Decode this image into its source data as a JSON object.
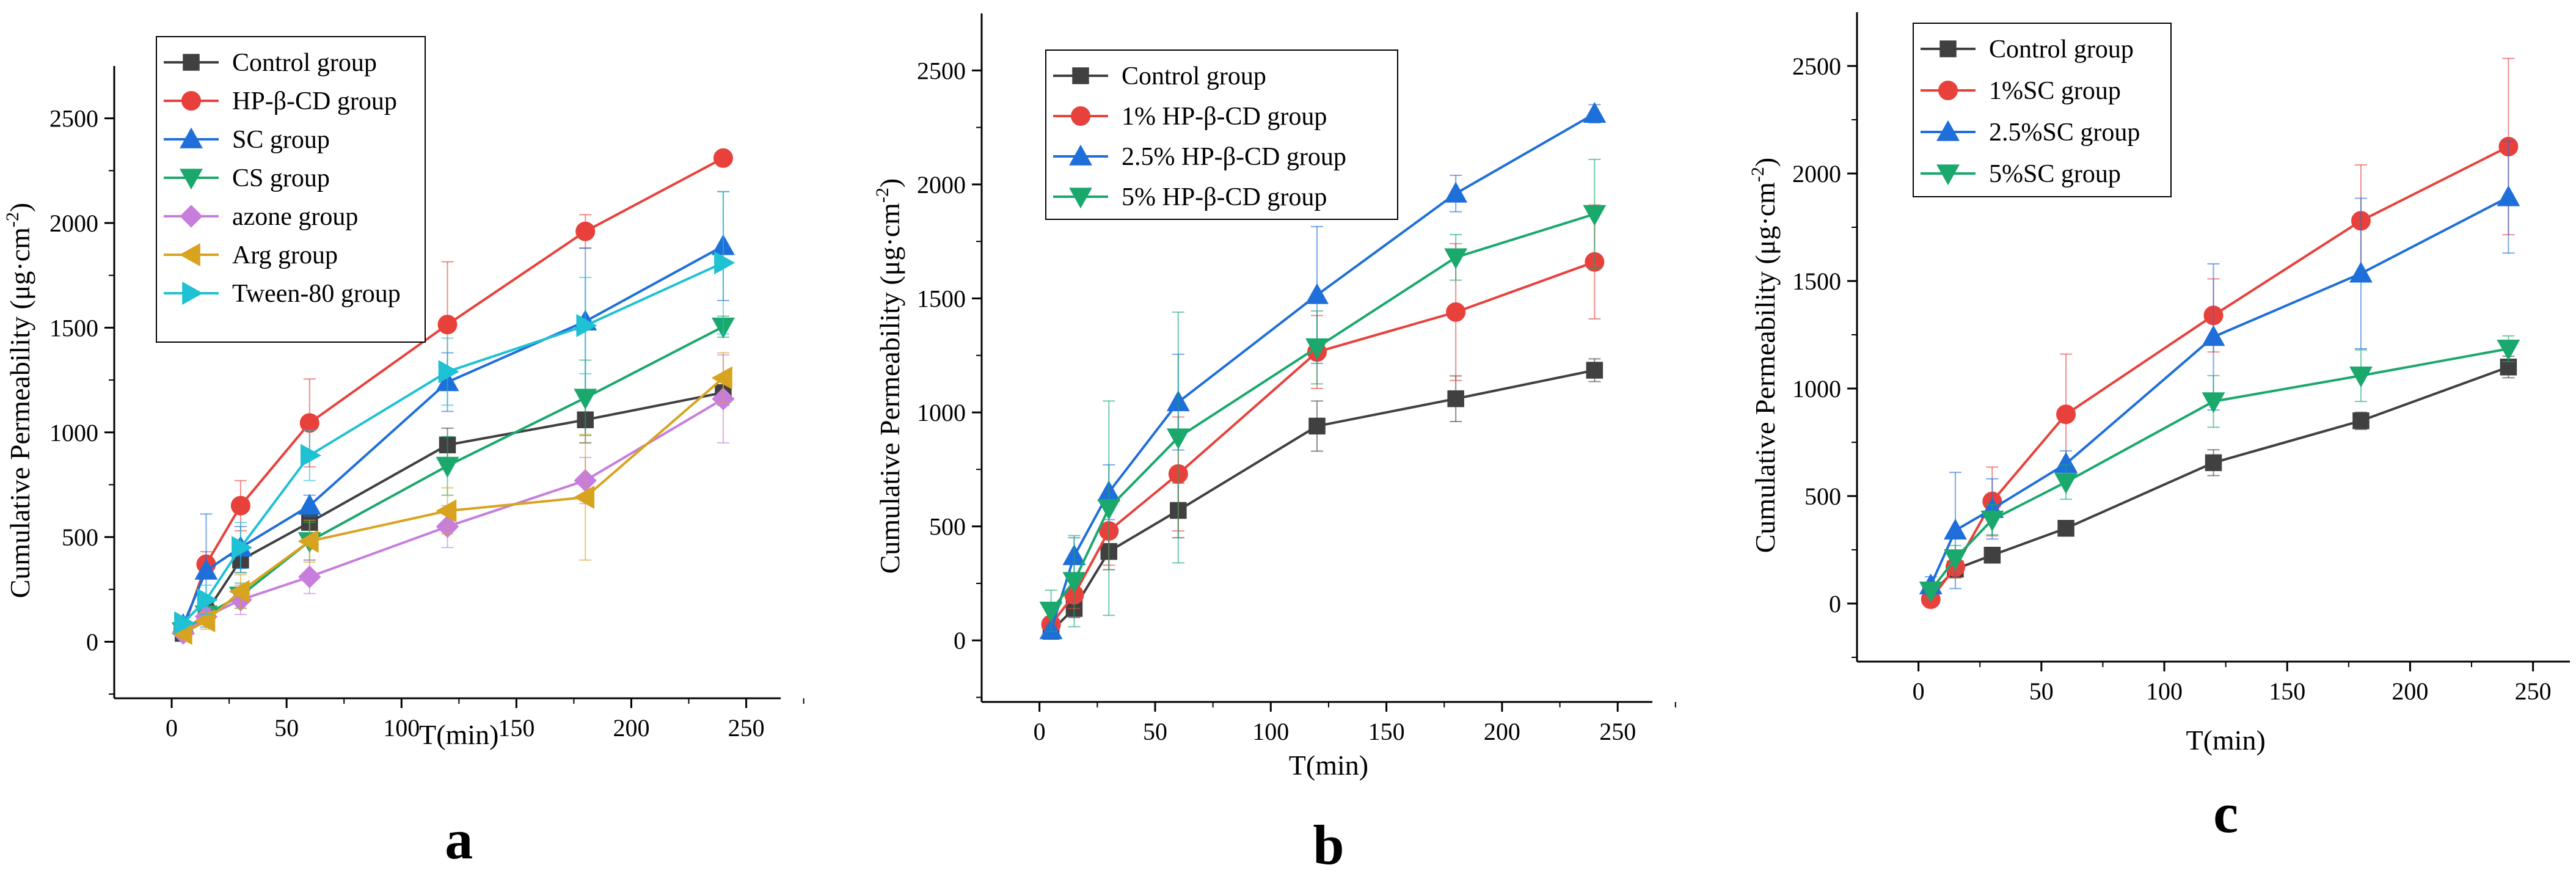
{
  "chart_data": [
    {
      "panel": "a",
      "type": "line",
      "panel_label": "a",
      "xlabel": "T(min)",
      "ylabel": "Cumulative Permeability (μg·cm",
      "ylabel_sup": "-2",
      "ylabel_close": ")",
      "xlim": [
        -25,
        265
      ],
      "ylim": [
        -270,
        2750
      ],
      "xticks": [
        0,
        50,
        100,
        150,
        200,
        250
      ],
      "yticks": [
        0,
        500,
        1000,
        1500,
        2000,
        2500
      ],
      "x": [
        5,
        15,
        30,
        60,
        120,
        180,
        240
      ],
      "series": [
        {
          "name": "Control group",
          "color": "#404040",
          "marker": "square",
          "values": [
            40,
            140,
            390,
            570,
            940,
            1060,
            1190
          ],
          "errors": [
            20,
            40,
            60,
            60,
            80,
            110,
            60
          ]
        },
        {
          "name": "HP-β-CD group",
          "color": "#e8413c",
          "marker": "circle",
          "values": [
            60,
            370,
            650,
            1045,
            1515,
            1960,
            2310
          ],
          "errors": [
            30,
            60,
            120,
            210,
            300,
            80,
            30
          ]
        },
        {
          "name": "SC group",
          "color": "#1e6fd9",
          "marker": "triangle-up",
          "values": [
            80,
            340,
            450,
            650,
            1240,
            1530,
            1890
          ],
          "errors": [
            30,
            270,
            100,
            50,
            140,
            350,
            260
          ]
        },
        {
          "name": "CS group",
          "color": "#1aa86c",
          "marker": "triangle-down",
          "values": [
            50,
            130,
            220,
            480,
            840,
            1165,
            1505
          ],
          "errors": [
            20,
            40,
            60,
            90,
            140,
            180,
            50
          ]
        },
        {
          "name": "azone group",
          "color": "#c77ddc",
          "marker": "diamond",
          "values": [
            40,
            120,
            200,
            310,
            550,
            770,
            1160
          ],
          "errors": [
            20,
            40,
            70,
            80,
            100,
            110,
            210
          ]
        },
        {
          "name": "Arg group",
          "color": "#d8a31e",
          "marker": "triangle-left",
          "values": [
            40,
            100,
            240,
            480,
            625,
            690,
            1260
          ],
          "errors": [
            20,
            40,
            80,
            100,
            110,
            300,
            120
          ]
        },
        {
          "name": "Tween-80 group",
          "color": "#1fc1d4",
          "marker": "triangle-right",
          "values": [
            90,
            200,
            450,
            890,
            1290,
            1510,
            1810
          ],
          "errors": [
            30,
            70,
            120,
            120,
            160,
            230,
            340
          ]
        }
      ]
    },
    {
      "panel": "b",
      "type": "line",
      "panel_label": "b",
      "xlabel": "T(min)",
      "ylabel": "Cumulative Permeability (μg·cm",
      "ylabel_sup": "-2",
      "ylabel_close": ")",
      "xlim": [
        -25,
        265
      ],
      "ylim": [
        -270,
        2750
      ],
      "xticks": [
        0,
        50,
        100,
        150,
        200,
        250
      ],
      "yticks": [
        0,
        500,
        1000,
        1500,
        2000,
        2500
      ],
      "x": [
        5,
        15,
        30,
        60,
        120,
        180,
        240
      ],
      "series": [
        {
          "name": "Control group",
          "color": "#404040",
          "marker": "square",
          "values": [
            40,
            140,
            390,
            570,
            940,
            1060,
            1185
          ],
          "errors": [
            20,
            40,
            80,
            120,
            110,
            100,
            50
          ]
        },
        {
          "name": "1% HP-β-CD group",
          "color": "#e8413c",
          "marker": "circle",
          "values": [
            70,
            200,
            480,
            730,
            1265,
            1440,
            1660
          ],
          "errors": [
            30,
            60,
            150,
            250,
            160,
            300,
            250
          ]
        },
        {
          "name": "2.5% HP-β-CD group",
          "color": "#1e6fd9",
          "marker": "triangle-up",
          "values": [
            45,
            370,
            650,
            1045,
            1515,
            1960,
            2310
          ],
          "errors": [
            20,
            80,
            120,
            210,
            300,
            80,
            40
          ]
        },
        {
          "name": "5% HP-β-CD group",
          "color": "#1aa86c",
          "marker": "triangle-down",
          "values": [
            130,
            260,
            580,
            890,
            1285,
            1680,
            1870
          ],
          "errors": [
            90,
            200,
            470,
            550,
            160,
            100,
            240
          ]
        }
      ]
    },
    {
      "panel": "c",
      "type": "line",
      "panel_label": "c",
      "xlabel": "T(min)",
      "ylabel": "Cumulative Permeability (μg·cm",
      "ylabel_sup": "-2",
      "ylabel_close": ")",
      "xlim": [
        -25,
        265
      ],
      "ylim": [
        -270,
        2750
      ],
      "xticks": [
        0,
        50,
        100,
        150,
        200,
        250
      ],
      "yticks": [
        0,
        500,
        1000,
        1500,
        2000,
        2500
      ],
      "x": [
        5,
        15,
        30,
        60,
        120,
        180,
        240
      ],
      "series": [
        {
          "name": "Control group",
          "color": "#404040",
          "marker": "square",
          "values": [
            40,
            160,
            225,
            350,
            655,
            850,
            1100
          ],
          "errors": [
            20,
            40,
            30,
            30,
            60,
            40,
            50
          ]
        },
        {
          "name": "1%SC group",
          "color": "#e8413c",
          "marker": "circle",
          "values": [
            20,
            170,
            475,
            880,
            1340,
            1780,
            2125
          ],
          "errors": [
            20,
            50,
            160,
            280,
            170,
            260,
            410
          ]
        },
        {
          "name": "2.5%SC group",
          "color": "#1e6fd9",
          "marker": "triangle-up",
          "values": [
            85,
            340,
            440,
            650,
            1240,
            1535,
            1890
          ],
          "errors": [
            40,
            270,
            140,
            60,
            340,
            350,
            260
          ]
        },
        {
          "name": "5%SC group",
          "color": "#1aa86c",
          "marker": "triangle-down",
          "values": [
            60,
            210,
            390,
            565,
            940,
            1060,
            1185
          ],
          "errors": [
            30,
            60,
            70,
            80,
            120,
            120,
            60
          ]
        }
      ]
    }
  ]
}
